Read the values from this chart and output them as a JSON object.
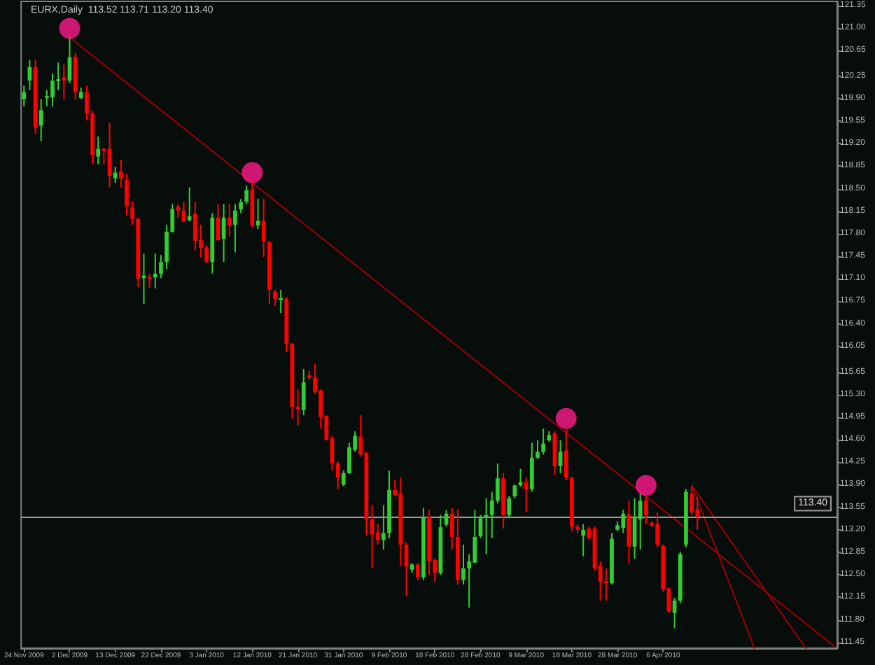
{
  "chart_data": {
    "type": "candlestick",
    "title": "EURX,Daily  113.52 113.71 113.20 113.40",
    "categories": [
      "24 Nov 2009",
      null,
      null,
      null,
      null,
      null,
      null,
      null,
      "2 Dec 2009",
      null,
      null,
      null,
      null,
      null,
      null,
      null,
      "13 Dec 2009",
      null,
      null,
      null,
      null,
      null,
      null,
      null,
      "22 Dec 2009",
      null,
      null,
      null,
      null,
      null,
      null,
      null,
      "3 Jan 2010",
      null,
      null,
      null,
      null,
      null,
      null,
      null,
      "12 Jan 2010",
      null,
      null,
      null,
      null,
      null,
      null,
      null,
      "21 Jan 2010",
      null,
      null,
      null,
      null,
      null,
      null,
      null,
      "31 Jan 2010",
      null,
      null,
      null,
      null,
      null,
      null,
      null,
      "9 Feb 2010",
      null,
      null,
      null,
      null,
      null,
      null,
      null,
      "18 Feb 2010",
      null,
      null,
      null,
      null,
      null,
      null,
      null,
      "28 Feb 2010",
      null,
      null,
      null,
      null,
      null,
      null,
      null,
      "9 Mar 2010",
      null,
      null,
      null,
      null,
      null,
      null,
      null,
      "18 Mar 2010",
      null,
      null,
      null,
      null,
      null,
      null,
      null,
      "28 Mar 2010",
      null,
      null,
      null,
      null,
      null,
      null,
      null,
      "6 Apr 2010",
      null,
      null,
      null,
      null,
      null,
      null,
      null,
      null,
      null,
      null,
      null,
      null,
      null,
      null,
      null,
      null,
      null,
      null,
      null,
      null,
      null,
      null,
      null,
      null,
      null,
      null,
      null,
      null,
      null,
      null
    ],
    "ohlc": [
      [
        119.89,
        120.1,
        119.78,
        120.0
      ],
      [
        120.18,
        120.5,
        120.03,
        120.39
      ],
      [
        120.39,
        120.5,
        119.35,
        119.45
      ],
      [
        119.48,
        119.89,
        119.24,
        119.72
      ],
      [
        119.91,
        120.03,
        119.78,
        119.94
      ],
      [
        119.92,
        120.29,
        119.78,
        120.18
      ],
      [
        120.17,
        120.46,
        120.03,
        120.2
      ],
      [
        120.23,
        120.43,
        119.89,
        120.18
      ],
      [
        120.18,
        120.86,
        120.14,
        120.54
      ],
      [
        120.55,
        120.61,
        119.89,
        120.0
      ],
      [
        119.91,
        120.07,
        119.89,
        120.0
      ],
      [
        120.0,
        120.1,
        119.56,
        119.67
      ],
      [
        119.67,
        119.71,
        118.88,
        119.02
      ],
      [
        119.0,
        119.31,
        118.88,
        119.12
      ],
      [
        119.12,
        119.13,
        118.88,
        119.09
      ],
      [
        119.12,
        119.53,
        118.52,
        118.7
      ],
      [
        118.66,
        118.84,
        118.59,
        118.75
      ],
      [
        118.77,
        118.95,
        118.52,
        118.66
      ],
      [
        118.64,
        118.73,
        118.08,
        118.23
      ],
      [
        118.21,
        118.3,
        117.94,
        118.03
      ],
      [
        118.03,
        118.05,
        116.97,
        117.1
      ],
      [
        117.11,
        117.49,
        116.71,
        117.15
      ],
      [
        117.13,
        117.18,
        116.95,
        117.1
      ],
      [
        117.12,
        117.49,
        116.95,
        117.18
      ],
      [
        117.18,
        117.47,
        117.11,
        117.36
      ],
      [
        117.36,
        117.94,
        117.25,
        117.83
      ],
      [
        117.83,
        118.26,
        117.82,
        118.18
      ],
      [
        118.22,
        118.26,
        118.05,
        118.16
      ],
      [
        118.16,
        118.3,
        117.98,
        117.99
      ],
      [
        118.01,
        118.52,
        117.99,
        118.07
      ],
      [
        118.11,
        118.3,
        117.54,
        117.69
      ],
      [
        117.7,
        117.94,
        117.44,
        117.58
      ],
      [
        117.59,
        117.62,
        117.35,
        117.36
      ],
      [
        117.36,
        118.12,
        117.18,
        118.05
      ],
      [
        118.05,
        118.26,
        117.69,
        117.7
      ],
      [
        117.72,
        118.26,
        117.36,
        118.05
      ],
      [
        118.05,
        118.26,
        117.76,
        117.93
      ],
      [
        117.94,
        118.26,
        117.51,
        118.16
      ],
      [
        118.18,
        118.34,
        118.12,
        118.29
      ],
      [
        118.3,
        118.55,
        118.26,
        118.48
      ],
      [
        118.48,
        118.59,
        117.9,
        117.93
      ],
      [
        117.93,
        118.34,
        117.87,
        118.0
      ],
      [
        118.0,
        118.34,
        117.44,
        117.69
      ],
      [
        117.67,
        117.69,
        116.71,
        116.93
      ],
      [
        116.9,
        116.93,
        116.68,
        116.79
      ],
      [
        116.77,
        116.93,
        116.57,
        116.8
      ],
      [
        116.79,
        116.82,
        115.96,
        116.09
      ],
      [
        116.09,
        116.1,
        114.93,
        115.11
      ],
      [
        115.11,
        115.38,
        114.82,
        115.08
      ],
      [
        115.06,
        115.7,
        114.98,
        115.49
      ],
      [
        115.6,
        115.67,
        115.53,
        115.56
      ],
      [
        115.56,
        115.78,
        115.31,
        115.34
      ],
      [
        115.37,
        115.38,
        114.77,
        114.95
      ],
      [
        114.97,
        114.98,
        114.59,
        114.6
      ],
      [
        114.62,
        114.66,
        114.12,
        114.23
      ],
      [
        114.23,
        114.26,
        113.83,
        114.01
      ],
      [
        113.9,
        114.12,
        113.88,
        114.08
      ],
      [
        114.08,
        114.55,
        114.07,
        114.48
      ],
      [
        114.44,
        114.73,
        114.41,
        114.66
      ],
      [
        114.65,
        114.98,
        114.34,
        114.37
      ],
      [
        114.39,
        114.41,
        113.11,
        113.36
      ],
      [
        113.36,
        113.58,
        112.6,
        113.13
      ],
      [
        113.16,
        113.29,
        112.97,
        113.04
      ],
      [
        113.04,
        113.58,
        112.89,
        113.15
      ],
      [
        113.15,
        114.12,
        113.07,
        113.82
      ],
      [
        113.82,
        113.97,
        113.72,
        113.74
      ],
      [
        113.76,
        114.01,
        112.64,
        112.97
      ],
      [
        112.97,
        113.0,
        112.17,
        112.63
      ],
      [
        112.58,
        112.68,
        112.53,
        112.66
      ],
      [
        112.66,
        112.68,
        112.42,
        112.46
      ],
      [
        112.46,
        113.54,
        112.42,
        113.4
      ],
      [
        113.4,
        113.51,
        112.5,
        112.71
      ],
      [
        112.73,
        112.75,
        112.39,
        112.53
      ],
      [
        112.53,
        113.43,
        112.5,
        113.24
      ],
      [
        113.28,
        113.51,
        113.25,
        113.45
      ],
      [
        113.45,
        113.54,
        112.89,
        113.09
      ],
      [
        113.09,
        113.51,
        112.35,
        112.42
      ],
      [
        112.42,
        112.97,
        112.35,
        112.6
      ],
      [
        112.6,
        112.82,
        111.99,
        112.71
      ],
      [
        112.69,
        113.51,
        112.68,
        113.09
      ],
      [
        113.1,
        113.43,
        113.07,
        113.38
      ],
      [
        113.4,
        113.69,
        112.82,
        113.43
      ],
      [
        113.43,
        113.79,
        113.07,
        113.65
      ],
      [
        113.65,
        114.23,
        113.61,
        114.0
      ],
      [
        114.0,
        114.08,
        113.22,
        113.43
      ],
      [
        113.43,
        113.72,
        113.4,
        113.69
      ],
      [
        113.72,
        113.9,
        113.69,
        113.89
      ],
      [
        113.89,
        114.15,
        113.87,
        113.94
      ],
      [
        113.94,
        114.01,
        113.47,
        113.83
      ],
      [
        113.83,
        114.55,
        113.79,
        114.32
      ],
      [
        114.32,
        114.59,
        114.3,
        114.41
      ],
      [
        114.41,
        114.77,
        114.37,
        114.54
      ],
      [
        114.59,
        114.73,
        114.57,
        114.67
      ],
      [
        114.7,
        114.73,
        114.05,
        114.19
      ],
      [
        114.19,
        114.59,
        114.08,
        114.41
      ],
      [
        114.43,
        114.77,
        113.97,
        114.01
      ],
      [
        114.01,
        114.02,
        113.18,
        113.25
      ],
      [
        113.25,
        113.29,
        113.15,
        113.2
      ],
      [
        113.11,
        113.29,
        112.79,
        113.2
      ],
      [
        113.22,
        113.25,
        113.04,
        113.07
      ],
      [
        113.22,
        113.25,
        112.57,
        112.6
      ],
      [
        112.64,
        112.71,
        112.1,
        112.39
      ],
      [
        112.4,
        112.6,
        112.1,
        112.37
      ],
      [
        112.37,
        113.15,
        112.35,
        113.06
      ],
      [
        113.2,
        113.33,
        113.18,
        113.27
      ],
      [
        113.23,
        113.51,
        113.15,
        113.45
      ],
      [
        113.43,
        113.65,
        112.68,
        112.94
      ],
      [
        112.94,
        113.69,
        112.75,
        113.38
      ],
      [
        113.36,
        113.76,
        112.89,
        113.65
      ],
      [
        113.65,
        113.72,
        113.29,
        113.43
      ],
      [
        113.31,
        113.33,
        113.24,
        113.27
      ],
      [
        113.29,
        113.47,
        112.93,
        112.97
      ],
      [
        112.95,
        112.97,
        112.24,
        112.28
      ],
      [
        112.29,
        112.3,
        111.91,
        111.93
      ],
      [
        111.91,
        112.14,
        111.67,
        112.1
      ],
      [
        112.1,
        112.86,
        112.06,
        112.82
      ],
      [
        112.97,
        113.83,
        112.93,
        113.79
      ],
      [
        113.76,
        113.87,
        113.43,
        113.47
      ],
      [
        113.52,
        113.71,
        113.2,
        113.4
      ],
      null,
      null,
      null,
      null,
      null,
      null,
      null,
      null,
      null,
      null,
      null,
      null,
      null,
      null,
      null,
      null,
      null,
      null,
      null,
      null,
      null,
      null,
      null,
      null
    ],
    "colors": [
      "#32cd32",
      "#32cd32",
      "#ff0000",
      "#32cd32",
      "#32cd32",
      "#32cd32",
      "#32cd32",
      "#ff0000",
      "#32cd32",
      "#ff0000",
      "#32cd32",
      "#ff0000",
      "#ff0000",
      "#32cd32",
      "#ff0000",
      "#ff0000",
      "#32cd32",
      "#ff0000",
      "#ff0000",
      "#ff0000",
      "#ff0000",
      "#32cd32",
      "#ff0000",
      "#32cd32",
      "#32cd32",
      "#32cd32",
      "#32cd32",
      "#ff0000",
      "#ff0000",
      "#32cd32",
      "#ff0000",
      "#ff0000",
      "#ff0000",
      "#32cd32",
      "#ff0000",
      "#32cd32",
      "#ff0000",
      "#32cd32",
      "#32cd32",
      "#32cd32",
      "#ff0000",
      "#32cd32",
      "#ff0000",
      "#ff0000",
      "#ff0000",
      "#32cd32",
      "#ff0000",
      "#ff0000",
      "#ff0000",
      "#32cd32",
      "#ff0000",
      "#ff0000",
      "#ff0000",
      "#ff0000",
      "#ff0000",
      "#ff0000",
      "#32cd32",
      "#32cd32",
      "#32cd32",
      "#ff0000",
      "#ff0000",
      "#ff0000",
      "#ff0000",
      "#32cd32",
      "#32cd32",
      "#ff0000",
      "#ff0000",
      "#ff0000",
      "#32cd32",
      "#ff0000",
      "#32cd32",
      "#ff0000",
      "#ff0000",
      "#32cd32",
      "#32cd32",
      "#ff0000",
      "#ff0000",
      "#32cd32",
      "#32cd32",
      "#32cd32",
      "#32cd32",
      "#32cd32",
      "#32cd32",
      "#32cd32",
      "#ff0000",
      "#32cd32",
      "#32cd32",
      "#32cd32",
      "#ff0000",
      "#32cd32",
      "#32cd32",
      "#32cd32",
      "#32cd32",
      "#ff0000",
      "#32cd32",
      "#ff0000",
      "#ff0000",
      "#ff0000",
      "#32cd32",
      "#ff0000",
      "#ff0000",
      "#ff0000",
      "#ff0000",
      "#32cd32",
      "#32cd32",
      "#32cd32",
      "#ff0000",
      "#32cd32",
      "#32cd32",
      "#ff0000",
      "#ff0000",
      "#ff0000",
      "#ff0000",
      "#ff0000",
      "#32cd32",
      "#32cd32",
      "#32cd32",
      "#ff0000",
      "#ff0000",
      null,
      null,
      null,
      null,
      null,
      null,
      null,
      null,
      null,
      null,
      null,
      null,
      null,
      null,
      null,
      null,
      null,
      null,
      null,
      null,
      null,
      null,
      null,
      null
    ],
    "series": [
      {
        "type": "line",
        "color": "#a00000",
        "values": [
          null,
          null,
          null,
          null,
          null,
          null,
          null,
          null,
          120.85,
          null,
          null,
          null,
          null,
          null,
          null,
          null,
          null,
          null,
          null,
          null,
          null,
          null,
          null,
          null,
          null,
          null,
          null,
          null,
          null,
          null,
          null,
          null,
          null,
          null,
          null,
          null,
          null,
          null,
          null,
          null,
          null,
          null,
          null,
          null,
          null,
          null,
          null,
          null,
          null,
          null,
          null,
          null,
          null,
          null,
          null,
          null,
          null,
          null,
          null,
          null,
          null,
          null,
          null,
          null,
          null,
          null,
          null,
          null,
          null,
          null,
          null,
          null,
          null,
          null,
          null,
          null,
          null,
          null,
          null,
          null,
          null,
          null,
          null,
          null,
          null,
          null,
          null,
          null,
          null,
          null,
          null,
          null,
          null,
          null,
          null,
          null,
          null,
          null,
          null,
          null,
          null,
          null,
          null,
          null,
          null,
          null,
          null,
          null,
          null,
          null,
          null,
          null,
          null,
          null,
          null,
          null,
          null,
          null,
          null,
          null,
          null,
          null,
          null,
          null,
          null,
          null,
          null,
          null,
          null,
          null,
          null,
          null,
          null,
          null,
          null,
          null,
          null,
          null,
          null,
          null,
          null,
          null,
          111.39
        ]
      },
      {
        "type": "line",
        "color": "#a00000",
        "values": [
          null,
          null,
          null,
          null,
          null,
          null,
          null,
          null,
          null,
          null,
          null,
          null,
          null,
          null,
          null,
          null,
          null,
          null,
          null,
          null,
          null,
          null,
          null,
          null,
          null,
          null,
          null,
          null,
          null,
          null,
          null,
          null,
          null,
          null,
          null,
          null,
          null,
          null,
          null,
          null,
          null,
          null,
          null,
          null,
          null,
          null,
          null,
          null,
          null,
          null,
          null,
          null,
          null,
          null,
          null,
          null,
          null,
          null,
          null,
          null,
          null,
          null,
          null,
          null,
          null,
          null,
          null,
          null,
          null,
          null,
          null,
          null,
          null,
          null,
          null,
          null,
          null,
          null,
          null,
          null,
          null,
          null,
          null,
          null,
          null,
          null,
          null,
          null,
          null,
          null,
          null,
          null,
          null,
          null,
          null,
          null,
          null,
          null,
          null,
          null,
          null,
          null,
          null,
          null,
          null,
          null,
          null,
          null,
          null,
          null,
          null,
          null,
          null,
          null,
          null,
          null,
          null,
          113.89,
          null,
          null,
          null,
          null,
          null,
          null,
          null,
          null,
          null,
          null,
          111.36,
          null,
          null,
          null,
          null,
          null,
          null,
          null,
          null,
          null,
          null,
          null,
          null,
          null,
          null
        ]
      },
      {
        "type": "line",
        "color": "#a00000",
        "values": [
          null,
          null,
          null,
          null,
          null,
          null,
          null,
          null,
          null,
          null,
          null,
          null,
          null,
          null,
          null,
          null,
          null,
          null,
          null,
          null,
          null,
          null,
          null,
          null,
          null,
          null,
          null,
          null,
          null,
          null,
          null,
          null,
          null,
          null,
          null,
          null,
          null,
          null,
          null,
          null,
          null,
          null,
          null,
          null,
          null,
          null,
          null,
          null,
          null,
          null,
          null,
          null,
          null,
          null,
          null,
          null,
          null,
          null,
          null,
          null,
          null,
          null,
          null,
          null,
          null,
          null,
          null,
          null,
          null,
          null,
          null,
          null,
          null,
          null,
          null,
          null,
          null,
          null,
          null,
          null,
          null,
          null,
          null,
          null,
          null,
          null,
          null,
          null,
          null,
          null,
          null,
          null,
          null,
          null,
          null,
          null,
          null,
          null,
          null,
          null,
          null,
          null,
          null,
          null,
          null,
          null,
          null,
          null,
          null,
          null,
          null,
          null,
          null,
          null,
          null,
          null,
          null,
          113.89,
          null,
          null,
          null,
          null,
          null,
          null,
          null,
          null,
          null,
          null,
          null,
          null,
          null,
          null,
          null,
          null,
          null,
          null,
          null,
          111.36,
          null,
          null,
          null,
          null,
          null
        ]
      },
      {
        "type": "scatter",
        "color": "#ff1a8c",
        "marker": "circle",
        "values": [
          null,
          null,
          null,
          null,
          null,
          null,
          null,
          null,
          120.99,
          null,
          null,
          null,
          null,
          null,
          null,
          null,
          null,
          null,
          null,
          null,
          null,
          null,
          null,
          null,
          null,
          null,
          null,
          null,
          null,
          null,
          null,
          null,
          null,
          null,
          null,
          null,
          null,
          null,
          null,
          null,
          118.75,
          null,
          null,
          null,
          null,
          null,
          null,
          null,
          null,
          null,
          null,
          null,
          null,
          null,
          null,
          null,
          null,
          null,
          null,
          null,
          null,
          null,
          null,
          null,
          null,
          null,
          null,
          null,
          null,
          null,
          null,
          null,
          null,
          null,
          null,
          null,
          null,
          null,
          null,
          null,
          null,
          null,
          null,
          null,
          null,
          null,
          null,
          null,
          null,
          null,
          null,
          null,
          null,
          null,
          null,
          114.93,
          null,
          null,
          null,
          null,
          null,
          null,
          null,
          null,
          null,
          null,
          null,
          null,
          null,
          113.89,
          null,
          null,
          null,
          null,
          null,
          null,
          null,
          null,
          null,
          null,
          null,
          null,
          null,
          null,
          null,
          null,
          null,
          null,
          null,
          null,
          null,
          null,
          null,
          null,
          null,
          null,
          null,
          null,
          null,
          null,
          null,
          null,
          null
        ]
      }
    ],
    "ylim": [
      111.36,
      121.41
    ],
    "yticks": [
      {
        "value": 121.35,
        "label": "121.35"
      },
      {
        "value": 121,
        "label": "121.00"
      },
      {
        "value": 120.65,
        "label": "120.65"
      },
      {
        "value": 120.25,
        "label": "120.25"
      },
      {
        "value": 119.9,
        "label": "119.90"
      },
      {
        "value": 119.55,
        "label": "119.55"
      },
      {
        "value": 119.2,
        "label": "119.20"
      },
      {
        "value": 118.85,
        "label": "118.85"
      },
      {
        "value": 118.5,
        "label": "118.50"
      },
      {
        "value": 118.15,
        "label": "118.15"
      },
      {
        "value": 117.8,
        "label": "117.80"
      },
      {
        "value": 117.45,
        "label": "117.45"
      },
      {
        "value": 117.1,
        "label": "117.10"
      },
      {
        "value": 116.75,
        "label": "116.75"
      },
      {
        "value": 116.4,
        "label": "116.40"
      },
      {
        "value": 116.05,
        "label": "116.05"
      },
      {
        "value": 115.65,
        "label": "115.65"
      },
      {
        "value": 115.3,
        "label": "115.30"
      },
      {
        "value": 114.95,
        "label": "114.95"
      },
      {
        "value": 114.6,
        "label": "114.60"
      },
      {
        "value": 114.25,
        "label": "114.25"
      },
      {
        "value": 113.9,
        "label": "113.90"
      },
      {
        "value": 113.55,
        "label": "113.55"
      },
      {
        "value": 113.2,
        "label": "113.20"
      },
      {
        "value": 112.85,
        "label": "112.85"
      },
      {
        "value": 112.5,
        "label": "112.50"
      },
      {
        "value": 112.15,
        "label": "112.15"
      },
      {
        "value": 111.8,
        "label": "111.80"
      },
      {
        "value": 111.45,
        "label": "111.45"
      }
    ],
    "ref_lines": [
      {
        "axis": "y",
        "value": 113.4,
        "label": "113.40",
        "color": "#9a9a9a"
      }
    ]
  }
}
